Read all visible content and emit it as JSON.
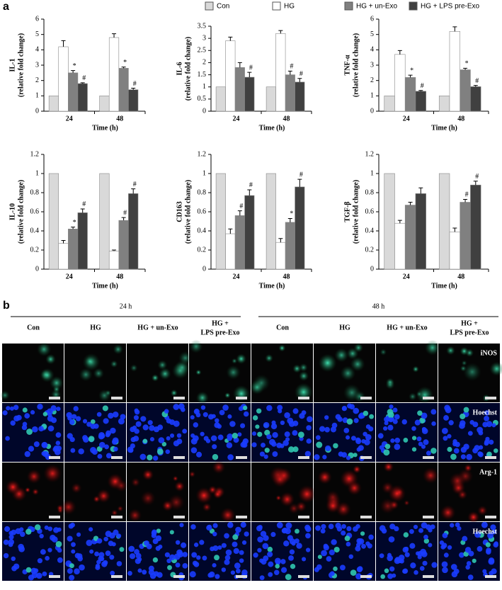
{
  "panel_a_label": "a",
  "panel_b_label": "b",
  "chart_data": [
    {
      "type": "bar",
      "ylabel": [
        "IL-1",
        "(relative fold change)"
      ],
      "xlabel": "Time (h)",
      "categories": [
        "24",
        "48"
      ],
      "ylim": [
        0,
        6
      ],
      "yticks": [
        0,
        1,
        2,
        3,
        4,
        5,
        6
      ],
      "series": [
        {
          "name": "Con",
          "color": "#d9d9d9",
          "values": [
            1,
            1
          ]
        },
        {
          "name": "HG",
          "color": "#ffffff",
          "values": [
            4.2,
            4.8
          ],
          "errors": [
            0.4,
            0.25
          ]
        },
        {
          "name": "HG + un-Exo",
          "color": "#808080",
          "values": [
            2.5,
            2.8
          ],
          "errors": [
            0.15,
            0.08
          ],
          "annotations": [
            "*",
            "*"
          ]
        },
        {
          "name": "HG + LPS pre-Exo",
          "color": "#404040",
          "values": [
            1.8,
            1.4
          ],
          "errors": [
            0.05,
            0.1
          ],
          "annotations": [
            "#",
            "#"
          ]
        }
      ]
    },
    {
      "type": "bar",
      "ylabel": [
        "IL-6",
        "(relative fold change)"
      ],
      "xlabel": "Time (h)",
      "categories": [
        "24",
        "48"
      ],
      "ylim": [
        0,
        3.5
      ],
      "yticks": [
        0,
        0.5,
        1,
        1.5,
        2,
        2.5,
        3,
        3.5
      ],
      "series": [
        {
          "color": "#d9d9d9",
          "values": [
            1,
            1
          ]
        },
        {
          "color": "#ffffff",
          "values": [
            2.9,
            3.2
          ],
          "errors": [
            0.15,
            0.12
          ]
        },
        {
          "color": "#808080",
          "values": [
            1.8,
            1.5
          ],
          "errors": [
            0.2,
            0.15
          ],
          "annotations": [
            null,
            "#"
          ]
        },
        {
          "color": "#404040",
          "values": [
            1.4,
            1.2
          ],
          "errors": [
            0.2,
            0.15
          ],
          "annotations": [
            "#",
            "#"
          ]
        }
      ]
    },
    {
      "type": "bar",
      "ylabel": [
        "TNF-α",
        "(relative fold change)"
      ],
      "xlabel": "Time (h)",
      "categories": [
        "24",
        "48"
      ],
      "ylim": [
        0,
        6
      ],
      "yticks": [
        0,
        1,
        2,
        3,
        4,
        5,
        6
      ],
      "series": [
        {
          "color": "#d9d9d9",
          "values": [
            1,
            1
          ]
        },
        {
          "color": "#ffffff",
          "values": [
            3.7,
            5.2
          ],
          "errors": [
            0.25,
            0.3
          ]
        },
        {
          "color": "#808080",
          "values": [
            2.2,
            2.7
          ],
          "errors": [
            0.15,
            0.1
          ],
          "annotations": [
            "*",
            "*"
          ]
        },
        {
          "color": "#404040",
          "values": [
            1.3,
            1.6
          ],
          "errors": [
            0.05,
            0.08
          ],
          "annotations": [
            "#",
            "#"
          ]
        }
      ]
    },
    {
      "type": "bar",
      "ylabel": [
        "IL-10",
        "(relative fold change)"
      ],
      "xlabel": "Time (h)",
      "categories": [
        "24",
        "48"
      ],
      "ylim": [
        0,
        1.2
      ],
      "yticks": [
        0,
        0.2,
        0.4,
        0.6,
        0.8,
        1,
        1.2
      ],
      "series": [
        {
          "color": "#d9d9d9",
          "values": [
            1,
            1
          ]
        },
        {
          "color": "#ffffff",
          "values": [
            0.27,
            0.19
          ],
          "errors": [
            0.03,
            0.01
          ]
        },
        {
          "color": "#808080",
          "values": [
            0.42,
            0.51
          ],
          "errors": [
            0.02,
            0.03
          ],
          "annotations": [
            "*",
            "#"
          ]
        },
        {
          "color": "#404040",
          "values": [
            0.59,
            0.79
          ],
          "errors": [
            0.04,
            0.05
          ],
          "annotations": [
            "#",
            "#"
          ]
        }
      ]
    },
    {
      "type": "bar",
      "ylabel": [
        "CD163",
        "(relative fold change)"
      ],
      "xlabel": "Time (h)",
      "categories": [
        "24",
        "48"
      ],
      "ylim": [
        0,
        1.2
      ],
      "yticks": [
        0,
        0.2,
        0.4,
        0.6,
        0.8,
        1,
        1.2
      ],
      "series": [
        {
          "color": "#d9d9d9",
          "values": [
            1,
            1
          ]
        },
        {
          "color": "#ffffff",
          "values": [
            0.37,
            0.28
          ],
          "errors": [
            0.05,
            0.04
          ]
        },
        {
          "color": "#808080",
          "values": [
            0.56,
            0.49
          ],
          "errors": [
            0.05,
            0.04
          ],
          "annotations": [
            "#",
            "*"
          ]
        },
        {
          "color": "#404040",
          "values": [
            0.77,
            0.86
          ],
          "errors": [
            0.06,
            0.08
          ],
          "annotations": [
            "#",
            "#"
          ]
        }
      ]
    },
    {
      "type": "bar",
      "ylabel": [
        "TGF-β",
        "(relative fold change)"
      ],
      "xlabel": "Time (h)",
      "categories": [
        "24",
        "48"
      ],
      "ylim": [
        0,
        1.2
      ],
      "yticks": [
        0,
        0.2,
        0.4,
        0.6,
        0.8,
        1,
        1.2
      ],
      "series": [
        {
          "color": "#d9d9d9",
          "values": [
            1,
            1
          ]
        },
        {
          "color": "#ffffff",
          "values": [
            0.48,
            0.39
          ],
          "errors": [
            0.03,
            0.04
          ]
        },
        {
          "color": "#808080",
          "values": [
            0.67,
            0.7
          ],
          "errors": [
            0.03,
            0.03
          ],
          "annotations": [
            null,
            "#"
          ]
        },
        {
          "color": "#404040",
          "values": [
            0.79,
            0.88
          ],
          "errors": [
            0.06,
            0.04
          ],
          "annotations": [
            null,
            "#"
          ]
        }
      ]
    }
  ],
  "panel_b": {
    "time_groups": [
      "24  h",
      "48  h"
    ],
    "columns": [
      [
        "Con"
      ],
      [
        "HG"
      ],
      [
        "HG + un-Exo"
      ],
      [
        "HG +",
        "LPS pre-Exo"
      ],
      [
        "Con"
      ],
      [
        "HG"
      ],
      [
        "HG + un-Exo"
      ],
      [
        "HG +",
        "LPS pre-Exo"
      ]
    ],
    "rows": [
      "iNOS",
      "Hoechst",
      "Arg-1",
      "Hoechst"
    ]
  }
}
